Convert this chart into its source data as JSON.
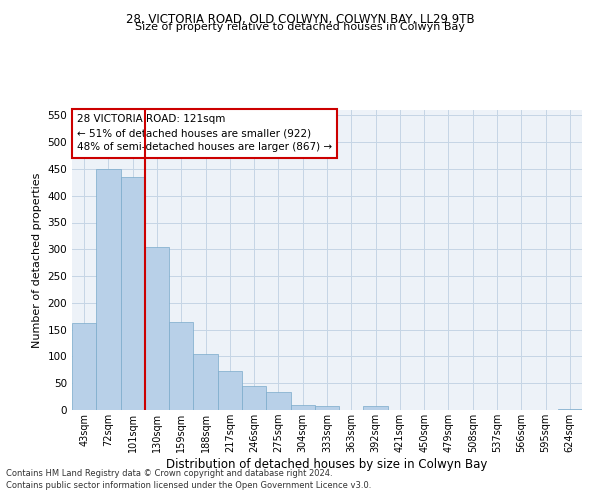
{
  "title1": "28, VICTORIA ROAD, OLD COLWYN, COLWYN BAY, LL29 9TB",
  "title2": "Size of property relative to detached houses in Colwyn Bay",
  "xlabel": "Distribution of detached houses by size in Colwyn Bay",
  "ylabel": "Number of detached properties",
  "categories": [
    "43sqm",
    "72sqm",
    "101sqm",
    "130sqm",
    "159sqm",
    "188sqm",
    "217sqm",
    "246sqm",
    "275sqm",
    "304sqm",
    "333sqm",
    "363sqm",
    "392sqm",
    "421sqm",
    "450sqm",
    "479sqm",
    "508sqm",
    "537sqm",
    "566sqm",
    "595sqm",
    "624sqm"
  ],
  "values": [
    162,
    450,
    435,
    305,
    165,
    105,
    72,
    44,
    33,
    9,
    7,
    0,
    7,
    0,
    0,
    0,
    0,
    0,
    0,
    0,
    2
  ],
  "bar_color": "#b8d0e8",
  "bar_edge_color": "#7aaacb",
  "vline_x": 2.5,
  "vline_color": "#cc0000",
  "annotation_text": "28 VICTORIA ROAD: 121sqm\n← 51% of detached houses are smaller (922)\n48% of semi-detached houses are larger (867) →",
  "annotation_box_color": "#ffffff",
  "annotation_box_edge": "#cc0000",
  "ylim": [
    0,
    560
  ],
  "yticks": [
    0,
    50,
    100,
    150,
    200,
    250,
    300,
    350,
    400,
    450,
    500,
    550
  ],
  "footer1": "Contains HM Land Registry data © Crown copyright and database right 2024.",
  "footer2": "Contains public sector information licensed under the Open Government Licence v3.0.",
  "bg_color": "#edf2f8",
  "grid_color": "#c5d5e5",
  "fig_width": 6.0,
  "fig_height": 5.0,
  "dpi": 100
}
